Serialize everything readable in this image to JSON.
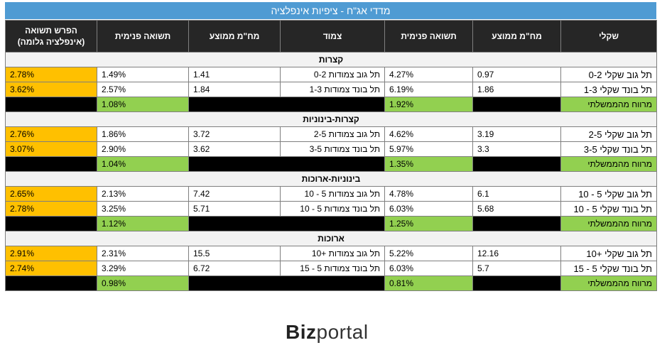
{
  "title": "מדדי אג\"ח - ציפיות אינפלציה",
  "headers": {
    "inflation_gap": "הפרש תשואה (אינפלציה גלומה)",
    "real_yield": "תשואה פנימית",
    "avg_duration_linked": "מח\"מ ממוצע",
    "linked": "צמוד",
    "nominal_yield": "תשואה פנימית",
    "avg_duration_shekel": "מח\"מ ממוצע",
    "shekel": "שקלי"
  },
  "sections": [
    {
      "name": "קצרות",
      "rows": [
        {
          "gap": "2.78%",
          "real": "1.49%",
          "dur_l": "1.41",
          "linked": "תל גוב צמודות 0-2",
          "nom": "4.27%",
          "dur_s": "0.97",
          "shekel": "תל גוב שקלי 0-2"
        },
        {
          "gap": "3.62%",
          "real": "2.57%",
          "dur_l": "1.84",
          "linked": "תל בונד צמודות 1-3",
          "nom": "6.19%",
          "dur_s": "1.86",
          "shekel": "תל בונד שקלי 1-3"
        }
      ],
      "spread_real": "1.08%",
      "spread_nom": "1.92%",
      "spread_label": "מרווח מהממשלתי"
    },
    {
      "name": "קצרות-בינוניות",
      "rows": [
        {
          "gap": "2.76%",
          "real": "1.86%",
          "dur_l": "3.72",
          "linked": "תל גוב צמודות 2-5",
          "nom": "4.62%",
          "dur_s": "3.19",
          "shekel": "תל גוב שקלי 2-5"
        },
        {
          "gap": "3.07%",
          "real": "2.90%",
          "dur_l": "3.62",
          "linked": "תל בונד צמודות 3-5",
          "nom": "5.97%",
          "dur_s": "3.3",
          "shekel": "תל בונד שקלי 3-5"
        }
      ],
      "spread_real": "1.04%",
      "spread_nom": "1.35%",
      "spread_label": "מרווח מהממשלתי"
    },
    {
      "name": "בינוניות-ארוכות",
      "rows": [
        {
          "gap": "2.65%",
          "real": "2.13%",
          "dur_l": "7.42",
          "linked": "תל גוב צמודות 5 - 10",
          "nom": "4.78%",
          "dur_s": "6.1",
          "shekel": "תל גוב שקלי 5 - 10"
        },
        {
          "gap": "2.78%",
          "real": "3.25%",
          "dur_l": "5.71",
          "linked": "תל בונד צמודות 5 - 10",
          "nom": "6.03%",
          "dur_s": "5.68",
          "shekel": "תל בונד שקלי 5 - 10"
        }
      ],
      "spread_real": "1.12%",
      "spread_nom": "1.25%",
      "spread_label": "מרווח מהממשלתי"
    },
    {
      "name": "ארוכות",
      "rows": [
        {
          "gap": "2.91%",
          "real": "2.31%",
          "dur_l": "15.5",
          "linked": "תל גוב צמודות +10",
          "nom": "5.22%",
          "dur_s": "12.16",
          "shekel": "תל גוב שקלי +10"
        },
        {
          "gap": "2.74%",
          "real": "3.29%",
          "dur_l": "6.72",
          "linked": "תל בונד צמודות 5 - 15",
          "nom": "6.03%",
          "dur_s": "5.7",
          "shekel": "תל בונד שקלי 5 - 15"
        }
      ],
      "spread_real": "0.98%",
      "spread_nom": "0.81%",
      "spread_label": "מרווח מהממשלתי"
    }
  ],
  "logo": {
    "bold": "Biz",
    "light": "portal"
  }
}
